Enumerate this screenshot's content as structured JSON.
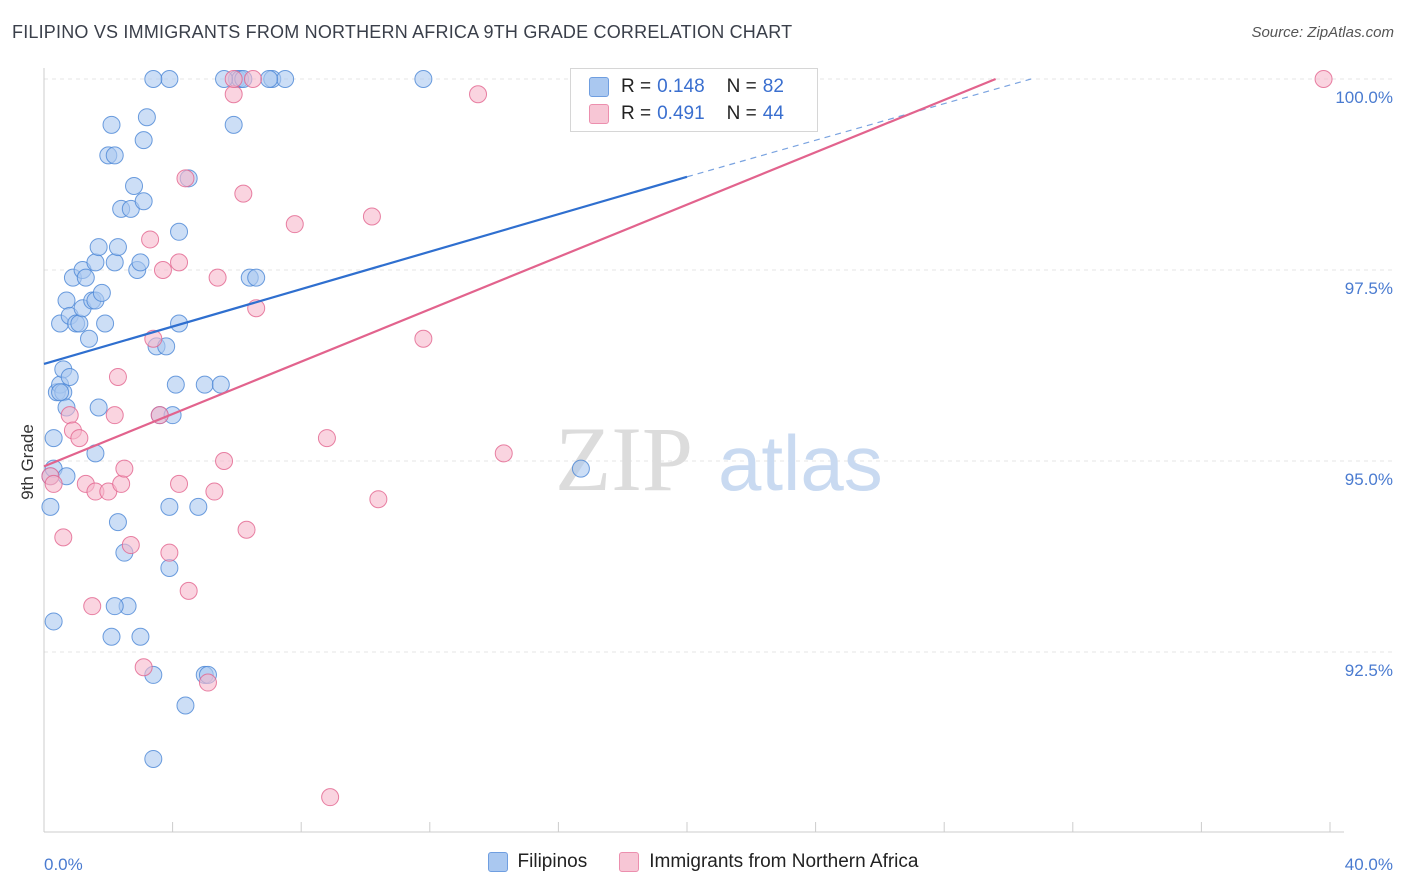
{
  "header": {
    "title": "FILIPINO VS IMMIGRANTS FROM NORTHERN AFRICA 9TH GRADE CORRELATION CHART",
    "source": "Source: ZipAtlas.com"
  },
  "watermark": {
    "zip": "ZIP",
    "atlas": "atlas"
  },
  "legend_top": {
    "rows": [
      {
        "r_label": "R =",
        "r_value": "0.148",
        "n_label": "N =",
        "n_value": "82",
        "color": "#aac8f0"
      },
      {
        "r_label": "R =",
        "r_value": "0.491",
        "n_label": "N =",
        "n_value": "44",
        "color": "#f7b8cb"
      }
    ]
  },
  "legend_bottom": {
    "items": [
      {
        "label": "Filipinos",
        "color": "#aac8f0"
      },
      {
        "label": "Immigrants from Northern Africa",
        "color": "#f7b8cb"
      }
    ]
  },
  "chart_data": {
    "type": "scatter",
    "title": "FILIPINO VS IMMIGRANTS FROM NORTHERN AFRICA 9TH GRADE CORRELATION CHART",
    "xlabel": "",
    "ylabel": "9th Grade",
    "xlim": [
      0,
      40
    ],
    "ylim": [
      90.2,
      100.25
    ],
    "x_tick_labels": [
      "0.0%",
      "40.0%"
    ],
    "y_ticks": [
      100.0,
      97.5,
      95.0,
      92.5
    ],
    "y_tick_labels": [
      "100.0%",
      "97.5%",
      "95.0%",
      "92.5%"
    ],
    "grid": true,
    "legend_position": "top-center",
    "series": [
      {
        "name": "Filipinos",
        "color": "#4a86d6",
        "fill": "#aac8f0",
        "trend": {
          "x0": 0,
          "y0": 96.27,
          "x1": 20,
          "y1": 98.72,
          "dashed_to_x": 30.7,
          "dashed_to_y": 100.0
        },
        "points": [
          [
            0.2,
            94.4
          ],
          [
            0.2,
            94.8
          ],
          [
            0.3,
            95.3
          ],
          [
            0.3,
            92.9
          ],
          [
            0.3,
            94.9
          ],
          [
            0.4,
            95.9
          ],
          [
            0.5,
            96.0
          ],
          [
            0.6,
            96.2
          ],
          [
            0.6,
            95.9
          ],
          [
            0.7,
            95.7
          ],
          [
            0.7,
            94.8
          ],
          [
            0.5,
            95.9
          ],
          [
            0.8,
            96.1
          ],
          [
            0.5,
            96.8
          ],
          [
            0.7,
            97.1
          ],
          [
            0.8,
            96.9
          ],
          [
            0.9,
            97.4
          ],
          [
            1.0,
            96.8
          ],
          [
            1.1,
            96.8
          ],
          [
            1.2,
            97.0
          ],
          [
            1.2,
            97.5
          ],
          [
            1.3,
            97.4
          ],
          [
            1.4,
            96.6
          ],
          [
            1.5,
            97.1
          ],
          [
            1.6,
            97.6
          ],
          [
            1.6,
            97.1
          ],
          [
            1.7,
            97.8
          ],
          [
            1.8,
            97.2
          ],
          [
            1.9,
            96.8
          ],
          [
            2.0,
            99.0
          ],
          [
            2.1,
            99.4
          ],
          [
            2.2,
            99.0
          ],
          [
            2.2,
            97.6
          ],
          [
            2.3,
            97.8
          ],
          [
            2.3,
            94.2
          ],
          [
            2.4,
            98.3
          ],
          [
            2.5,
            93.8
          ],
          [
            2.6,
            93.1
          ],
          [
            2.7,
            98.3
          ],
          [
            2.8,
            98.6
          ],
          [
            2.9,
            97.5
          ],
          [
            3.0,
            97.6
          ],
          [
            3.1,
            98.4
          ],
          [
            3.1,
            99.2
          ],
          [
            3.2,
            99.5
          ],
          [
            3.4,
            92.2
          ],
          [
            3.5,
            96.5
          ],
          [
            3.6,
            95.6
          ],
          [
            3.9,
            93.6
          ],
          [
            4.0,
            95.6
          ],
          [
            4.1,
            96.0
          ],
          [
            4.2,
            96.8
          ],
          [
            4.2,
            98.0
          ],
          [
            4.4,
            91.8
          ],
          [
            4.5,
            98.7
          ],
          [
            4.8,
            94.4
          ],
          [
            5.0,
            92.2
          ],
          [
            5.0,
            96.0
          ],
          [
            5.1,
            92.2
          ],
          [
            5.9,
            99.4
          ],
          [
            6.4,
            97.4
          ],
          [
            7.1,
            100.0
          ],
          [
            7.5,
            100.0
          ],
          [
            3.9,
            100.0
          ],
          [
            3.4,
            100.0
          ],
          [
            6.0,
            100.0
          ],
          [
            6.1,
            100.0
          ],
          [
            7.0,
            100.0
          ],
          [
            11.8,
            100.0
          ],
          [
            6.6,
            97.4
          ],
          [
            5.5,
            96.0
          ],
          [
            2.1,
            92.7
          ],
          [
            1.6,
            95.1
          ],
          [
            3.0,
            92.7
          ],
          [
            3.4,
            91.1
          ],
          [
            6.2,
            100.0
          ],
          [
            5.6,
            100.0
          ],
          [
            3.8,
            96.5
          ],
          [
            1.7,
            95.7
          ],
          [
            3.9,
            94.4
          ],
          [
            16.7,
            94.9
          ],
          [
            2.2,
            93.1
          ]
        ]
      },
      {
        "name": "Immigrants from Northern Africa",
        "color": "#e2638d",
        "fill": "#f7b8cb",
        "trend": {
          "x0": 0,
          "y0": 94.93,
          "x1": 29.6,
          "y1": 100.0
        },
        "points": [
          [
            0.2,
            94.8
          ],
          [
            0.3,
            94.7
          ],
          [
            0.6,
            94.0
          ],
          [
            0.8,
            95.6
          ],
          [
            0.9,
            95.4
          ],
          [
            1.1,
            95.3
          ],
          [
            1.3,
            94.7
          ],
          [
            1.5,
            93.1
          ],
          [
            1.6,
            94.6
          ],
          [
            2.0,
            94.6
          ],
          [
            2.2,
            95.6
          ],
          [
            2.3,
            96.1
          ],
          [
            2.4,
            94.7
          ],
          [
            2.7,
            93.9
          ],
          [
            3.1,
            92.3
          ],
          [
            3.3,
            97.9
          ],
          [
            3.4,
            96.6
          ],
          [
            3.6,
            95.6
          ],
          [
            3.7,
            97.5
          ],
          [
            3.9,
            93.8
          ],
          [
            4.2,
            94.7
          ],
          [
            4.4,
            98.7
          ],
          [
            4.5,
            93.3
          ],
          [
            5.1,
            92.1
          ],
          [
            5.3,
            94.6
          ],
          [
            5.4,
            97.4
          ],
          [
            5.6,
            95.0
          ],
          [
            5.9,
            99.8
          ],
          [
            6.3,
            94.1
          ],
          [
            6.2,
            98.5
          ],
          [
            6.6,
            97.0
          ],
          [
            7.8,
            98.1
          ],
          [
            8.8,
            95.3
          ],
          [
            8.9,
            90.6
          ],
          [
            10.2,
            98.2
          ],
          [
            10.4,
            94.5
          ],
          [
            11.8,
            96.6
          ],
          [
            13.5,
            99.8
          ],
          [
            14.3,
            95.1
          ],
          [
            39.8,
            100.0
          ],
          [
            6.5,
            100.0
          ],
          [
            5.9,
            100.0
          ],
          [
            2.5,
            94.9
          ],
          [
            4.2,
            97.6
          ]
        ]
      }
    ]
  }
}
